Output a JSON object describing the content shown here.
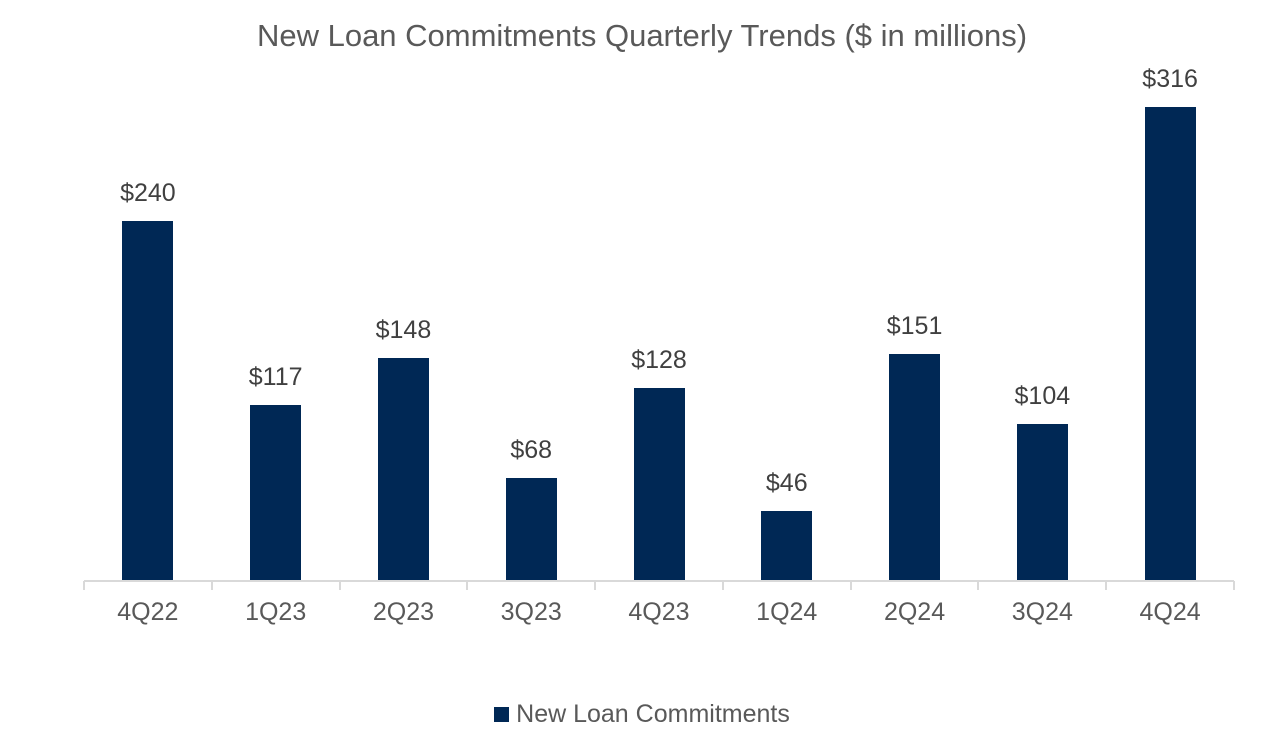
{
  "chart_data": {
    "type": "bar",
    "title": "New Loan Commitments Quarterly Trends ($ in millions)",
    "categories": [
      "4Q22",
      "1Q23",
      "2Q23",
      "3Q23",
      "4Q23",
      "1Q24",
      "2Q24",
      "3Q24",
      "4Q24"
    ],
    "series": [
      {
        "name": "New Loan Commitments",
        "values": [
          240,
          117,
          148,
          68,
          128,
          46,
          151,
          104,
          316
        ],
        "labels": [
          "$240",
          "$117",
          "$148",
          "$68",
          "$128",
          "$46",
          "$151",
          "$104",
          "$316"
        ],
        "color": "#002855"
      }
    ],
    "xlabel": "",
    "ylabel": "",
    "ylim": [
      0,
      320
    ],
    "grid": false,
    "y_axis_visible": false,
    "data_labels": true,
    "legend_position": "bottom"
  },
  "colors": {
    "bar": "#002855",
    "axis": "#d9d9d9",
    "text": "#595959"
  }
}
